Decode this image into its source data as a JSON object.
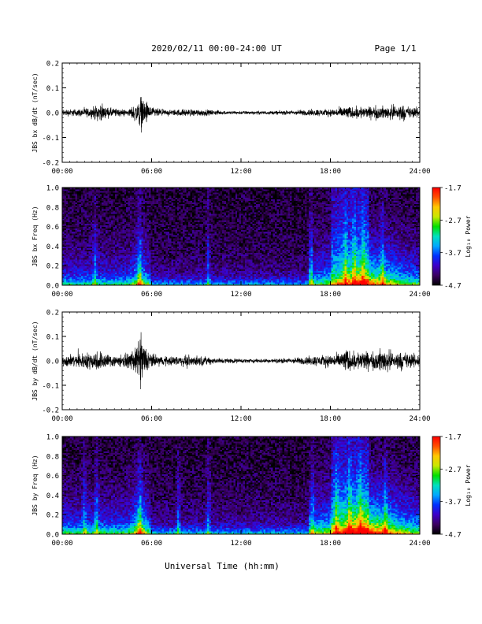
{
  "header": {
    "title": "2020/02/11  00:00-24:00 UT",
    "page": "Page 1/1"
  },
  "xaxis_label": "Universal Time (hh:mm)",
  "colorbar": {
    "label": "Log₁₀ Power",
    "ticks": [
      "-1.7",
      "-2.7",
      "-3.7",
      "-4.7"
    ],
    "range": [
      -4.7,
      -1.7
    ],
    "colors": [
      "#000000",
      "#3b0060",
      "#3d00c8",
      "#0030ff",
      "#00a8ff",
      "#00e0c0",
      "#00e000",
      "#c8e800",
      "#ffc800",
      "#ff5000",
      "#ff0000"
    ]
  },
  "chart_data": [
    {
      "type": "line",
      "ylabel": "JBS bx dB/dt (nT/sec)",
      "xlim": [
        0,
        24
      ],
      "ylim": [
        -0.2,
        0.2
      ],
      "x_ticks": [
        "00:00",
        "06:00",
        "12:00",
        "18:00",
        "24:00"
      ],
      "y_ticks": [
        "0.2",
        "0.1",
        "0.0",
        "-0.1",
        "-0.2"
      ],
      "grid": false,
      "envelope": {
        "hours": [
          0.0,
          1.0,
          2.0,
          2.5,
          3.0,
          4.0,
          4.5,
          5.0,
          5.3,
          5.6,
          6.0,
          7.0,
          8.0,
          9.0,
          10.0,
          11.0,
          12.0,
          13.0,
          14.0,
          15.0,
          16.0,
          17.0,
          18.0,
          18.5,
          19.0,
          19.5,
          20.0,
          20.5,
          21.0,
          21.5,
          22.0,
          22.5,
          23.0,
          23.5,
          24.0
        ],
        "amplitude": [
          0.02,
          0.02,
          0.03,
          0.05,
          0.03,
          0.02,
          0.02,
          0.06,
          0.1,
          0.07,
          0.03,
          0.015,
          0.02,
          0.02,
          0.015,
          0.01,
          0.01,
          0.01,
          0.01,
          0.012,
          0.015,
          0.02,
          0.02,
          0.025,
          0.04,
          0.03,
          0.04,
          0.03,
          0.04,
          0.035,
          0.04,
          0.05,
          0.04,
          0.03,
          0.03
        ]
      }
    },
    {
      "type": "heatmap",
      "ylabel": "JBS bx Freq (Hz)",
      "xlim": [
        0,
        24
      ],
      "ylim": [
        0.0,
        1.0
      ],
      "x_ticks": [
        "00:00",
        "06:00",
        "12:00",
        "18:00",
        "24:00"
      ],
      "y_ticks": [
        "1.0",
        "0.8",
        "0.6",
        "0.4",
        "0.2",
        "0.0"
      ],
      "value_label": "Log₁₀ Power",
      "vrange": [
        -4.7,
        -1.7
      ]
    },
    {
      "type": "line",
      "ylabel": "JBS by dB/dt (nT/sec)",
      "xlim": [
        0,
        24
      ],
      "ylim": [
        -0.2,
        0.2
      ],
      "x_ticks": [
        "00:00",
        "06:00",
        "12:00",
        "18:00",
        "24:00"
      ],
      "y_ticks": [
        "0.2",
        "0.1",
        "0.0",
        "-0.1",
        "-0.2"
      ],
      "grid": false,
      "envelope": {
        "hours": [
          0.0,
          1.0,
          2.0,
          2.5,
          3.0,
          4.0,
          4.5,
          5.0,
          5.3,
          5.6,
          6.0,
          7.0,
          8.0,
          9.0,
          10.0,
          11.0,
          12.0,
          13.0,
          14.0,
          15.0,
          16.0,
          17.0,
          18.0,
          18.5,
          19.0,
          19.5,
          20.0,
          20.5,
          21.0,
          21.5,
          22.0,
          22.5,
          23.0,
          23.5,
          24.0
        ],
        "amplitude": [
          0.03,
          0.04,
          0.05,
          0.06,
          0.04,
          0.035,
          0.04,
          0.08,
          0.16,
          0.08,
          0.04,
          0.025,
          0.03,
          0.03,
          0.02,
          0.015,
          0.012,
          0.012,
          0.012,
          0.015,
          0.02,
          0.03,
          0.035,
          0.04,
          0.07,
          0.05,
          0.06,
          0.05,
          0.05,
          0.07,
          0.06,
          0.05,
          0.05,
          0.04,
          0.04
        ]
      }
    },
    {
      "type": "heatmap",
      "ylabel": "JBS by Freq (Hz)",
      "xlim": [
        0,
        24
      ],
      "ylim": [
        0.0,
        1.0
      ],
      "x_ticks": [
        "00:00",
        "06:00",
        "12:00",
        "18:00",
        "24:00"
      ],
      "y_ticks": [
        "1.0",
        "0.8",
        "0.6",
        "0.4",
        "0.2",
        "0.0"
      ],
      "value_label": "Log₁₀ Power",
      "vrange": [
        -4.7,
        -1.7
      ]
    }
  ]
}
